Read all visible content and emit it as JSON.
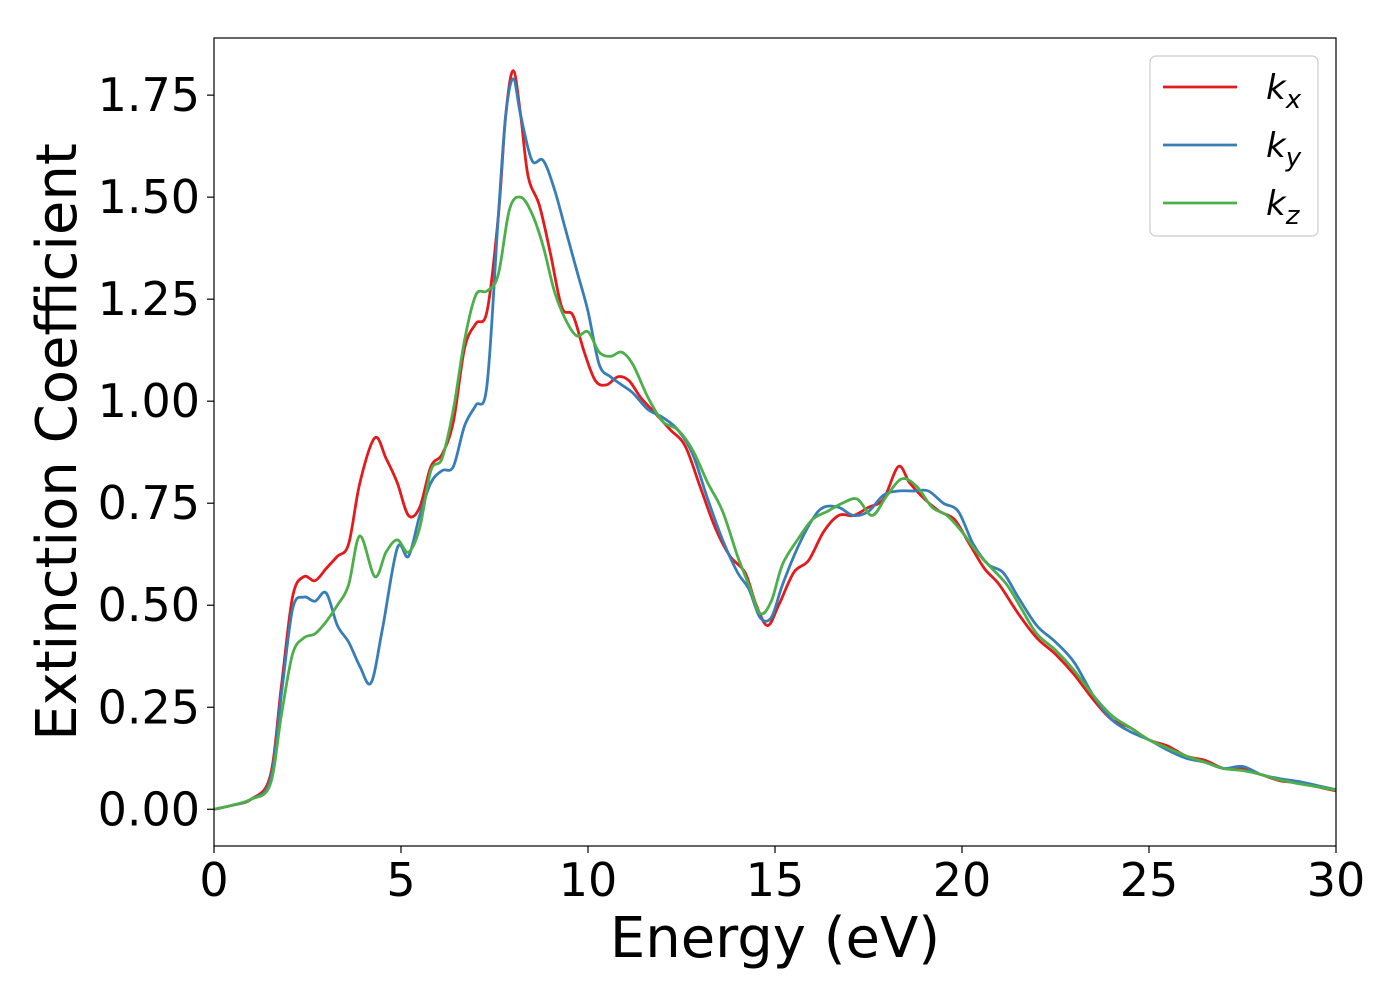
{
  "chart_data": {
    "type": "line",
    "title": "",
    "xlabel": "Energy (eV)",
    "ylabel": "Extinction Coefficient",
    "xlim": [
      0,
      30
    ],
    "ylim": [
      -0.09,
      1.89
    ],
    "xticks": [
      "0",
      "5",
      "10",
      "15",
      "20",
      "25",
      "30"
    ],
    "yticks": [
      "0.00",
      "0.25",
      "0.50",
      "0.75",
      "1.00",
      "1.25",
      "1.50",
      "1.75"
    ],
    "grid": false,
    "legend_position": "top-right",
    "series": [
      {
        "name": "k_x",
        "legend_base": "k",
        "legend_sub": "x",
        "color": "#e41a1c",
        "x": [
          0,
          0.5,
          1.0,
          1.5,
          1.8,
          2.1,
          2.4,
          2.7,
          3.0,
          3.3,
          3.6,
          3.9,
          4.3,
          4.6,
          4.9,
          5.2,
          5.5,
          5.8,
          6.1,
          6.4,
          6.7,
          7.0,
          7.3,
          7.6,
          7.8,
          8.0,
          8.2,
          8.4,
          8.7,
          9.0,
          9.3,
          9.6,
          9.9,
          10.2,
          10.5,
          10.8,
          11.1,
          11.4,
          11.8,
          12.2,
          12.6,
          13.0,
          13.4,
          13.8,
          14.2,
          14.5,
          14.8,
          15.1,
          15.5,
          15.9,
          16.3,
          16.7,
          17.1,
          17.5,
          17.9,
          18.3,
          18.6,
          19.0,
          19.4,
          19.8,
          20.2,
          20.6,
          21.0,
          21.5,
          22.0,
          22.5,
          23.0,
          23.5,
          24.0,
          24.5,
          25.0,
          25.5,
          26.0,
          26.5,
          27.0,
          27.5,
          28.0,
          28.5,
          29.0,
          29.5,
          30.0
        ],
        "y": [
          0.0,
          0.01,
          0.025,
          0.08,
          0.3,
          0.52,
          0.57,
          0.56,
          0.59,
          0.62,
          0.65,
          0.8,
          0.91,
          0.86,
          0.8,
          0.72,
          0.74,
          0.84,
          0.87,
          0.95,
          1.13,
          1.19,
          1.22,
          1.45,
          1.7,
          1.81,
          1.7,
          1.55,
          1.48,
          1.36,
          1.23,
          1.21,
          1.12,
          1.05,
          1.04,
          1.06,
          1.05,
          1.01,
          0.97,
          0.93,
          0.89,
          0.79,
          0.69,
          0.62,
          0.58,
          0.5,
          0.45,
          0.5,
          0.58,
          0.61,
          0.68,
          0.72,
          0.72,
          0.74,
          0.76,
          0.84,
          0.8,
          0.76,
          0.73,
          0.71,
          0.65,
          0.59,
          0.55,
          0.48,
          0.42,
          0.38,
          0.33,
          0.27,
          0.22,
          0.2,
          0.17,
          0.155,
          0.13,
          0.12,
          0.1,
          0.1,
          0.085,
          0.07,
          0.065,
          0.055,
          0.045
        ]
      },
      {
        "name": "k_y",
        "legend_base": "k",
        "legend_sub": "y",
        "color": "#377eb8",
        "x": [
          0,
          0.5,
          1.0,
          1.5,
          1.8,
          2.1,
          2.4,
          2.7,
          3.0,
          3.3,
          3.6,
          3.9,
          4.2,
          4.5,
          4.9,
          5.2,
          5.5,
          5.8,
          6.1,
          6.4,
          6.7,
          7.0,
          7.3,
          7.6,
          7.8,
          8.0,
          8.2,
          8.5,
          8.8,
          9.1,
          9.4,
          9.7,
          10.0,
          10.3,
          10.6,
          10.9,
          11.2,
          11.6,
          12.0,
          12.4,
          12.8,
          13.2,
          13.6,
          14.0,
          14.3,
          14.6,
          14.9,
          15.2,
          15.6,
          16.0,
          16.3,
          16.7,
          17.1,
          17.5,
          17.9,
          18.3,
          18.7,
          19.1,
          19.5,
          19.9,
          20.3,
          20.7,
          21.1,
          21.5,
          22.0,
          22.5,
          23.0,
          23.5,
          24.0,
          24.5,
          25.0,
          25.5,
          26.0,
          26.5,
          27.0,
          27.5,
          28.0,
          28.5,
          29.0,
          29.5,
          30.0
        ],
        "y": [
          0.0,
          0.01,
          0.025,
          0.07,
          0.28,
          0.49,
          0.52,
          0.51,
          0.53,
          0.45,
          0.41,
          0.35,
          0.31,
          0.44,
          0.64,
          0.62,
          0.72,
          0.8,
          0.83,
          0.84,
          0.94,
          0.99,
          1.04,
          1.45,
          1.7,
          1.79,
          1.7,
          1.59,
          1.59,
          1.52,
          1.42,
          1.32,
          1.22,
          1.09,
          1.06,
          1.04,
          1.02,
          0.98,
          0.96,
          0.93,
          0.87,
          0.76,
          0.66,
          0.58,
          0.54,
          0.47,
          0.47,
          0.55,
          0.64,
          0.71,
          0.74,
          0.74,
          0.72,
          0.73,
          0.77,
          0.78,
          0.78,
          0.78,
          0.75,
          0.73,
          0.65,
          0.6,
          0.58,
          0.52,
          0.45,
          0.41,
          0.36,
          0.28,
          0.22,
          0.19,
          0.17,
          0.145,
          0.125,
          0.115,
          0.1,
          0.105,
          0.085,
          0.075,
          0.068,
          0.058,
          0.048
        ]
      },
      {
        "name": "k_z",
        "legend_base": "k",
        "legend_sub": "z",
        "color": "#4daf4a",
        "x": [
          0,
          0.5,
          1.0,
          1.5,
          1.8,
          2.1,
          2.4,
          2.7,
          3.0,
          3.3,
          3.6,
          3.9,
          4.3,
          4.6,
          4.9,
          5.2,
          5.5,
          5.8,
          6.1,
          6.4,
          6.7,
          7.0,
          7.3,
          7.6,
          7.9,
          8.2,
          8.5,
          8.8,
          9.1,
          9.4,
          9.7,
          10.0,
          10.3,
          10.6,
          10.9,
          11.2,
          11.6,
          12.0,
          12.4,
          12.8,
          13.2,
          13.6,
          14.0,
          14.3,
          14.6,
          14.9,
          15.2,
          15.6,
          16.0,
          16.4,
          16.8,
          17.2,
          17.6,
          18.0,
          18.4,
          18.8,
          19.2,
          19.6,
          20.0,
          20.4,
          20.8,
          21.2,
          21.6,
          22.0,
          22.5,
          23.0,
          23.5,
          24.0,
          24.5,
          25.0,
          25.5,
          26.0,
          26.5,
          27.0,
          27.5,
          28.0,
          28.5,
          29.0,
          29.5,
          30.0
        ],
        "y": [
          0.0,
          0.01,
          0.025,
          0.06,
          0.23,
          0.38,
          0.42,
          0.43,
          0.46,
          0.5,
          0.55,
          0.67,
          0.57,
          0.63,
          0.66,
          0.63,
          0.69,
          0.83,
          0.86,
          0.98,
          1.15,
          1.26,
          1.27,
          1.31,
          1.47,
          1.5,
          1.46,
          1.38,
          1.27,
          1.2,
          1.16,
          1.17,
          1.12,
          1.11,
          1.12,
          1.09,
          1.01,
          0.95,
          0.93,
          0.88,
          0.8,
          0.73,
          0.62,
          0.55,
          0.48,
          0.51,
          0.6,
          0.66,
          0.71,
          0.73,
          0.75,
          0.76,
          0.72,
          0.77,
          0.81,
          0.79,
          0.74,
          0.72,
          0.68,
          0.63,
          0.59,
          0.55,
          0.49,
          0.43,
          0.39,
          0.34,
          0.28,
          0.23,
          0.2,
          0.17,
          0.15,
          0.13,
          0.115,
          0.1,
          0.095,
          0.085,
          0.072,
          0.063,
          0.055,
          0.047
        ]
      }
    ]
  }
}
